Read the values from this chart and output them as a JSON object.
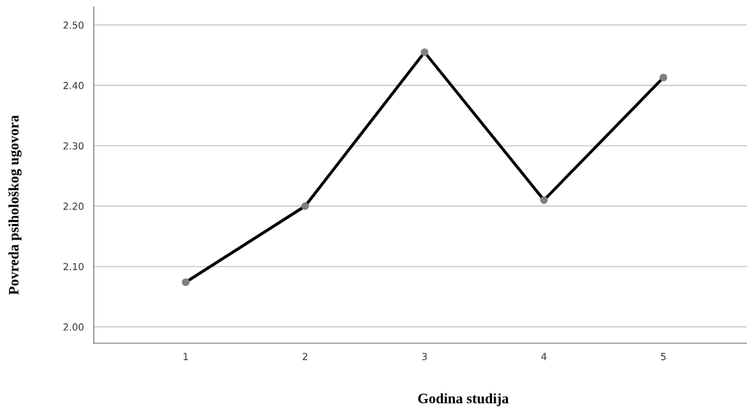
{
  "chart_data": {
    "type": "line",
    "xlabel": "Godina studija",
    "ylabel": "Povreda psihološkog ugovora",
    "categories": [
      "1",
      "2",
      "3",
      "4",
      "5"
    ],
    "series": [
      {
        "color": "#000000",
        "values": [
          2.074,
          2.2,
          2.455,
          2.21,
          2.413
        ]
      }
    ],
    "ylim": [
      1.973,
      2.53
    ],
    "yticks": [
      {
        "value": 2.0,
        "label": "2.00"
      },
      {
        "value": 2.1,
        "label": "2.10"
      },
      {
        "value": 2.2,
        "label": "2.20"
      },
      {
        "value": 2.3,
        "label": "2.30"
      },
      {
        "value": 2.4,
        "label": "2.40"
      },
      {
        "value": 2.5,
        "label": "2.50"
      }
    ],
    "grid": "y",
    "marker": "circle",
    "line_style": "solid",
    "legend": false
  }
}
